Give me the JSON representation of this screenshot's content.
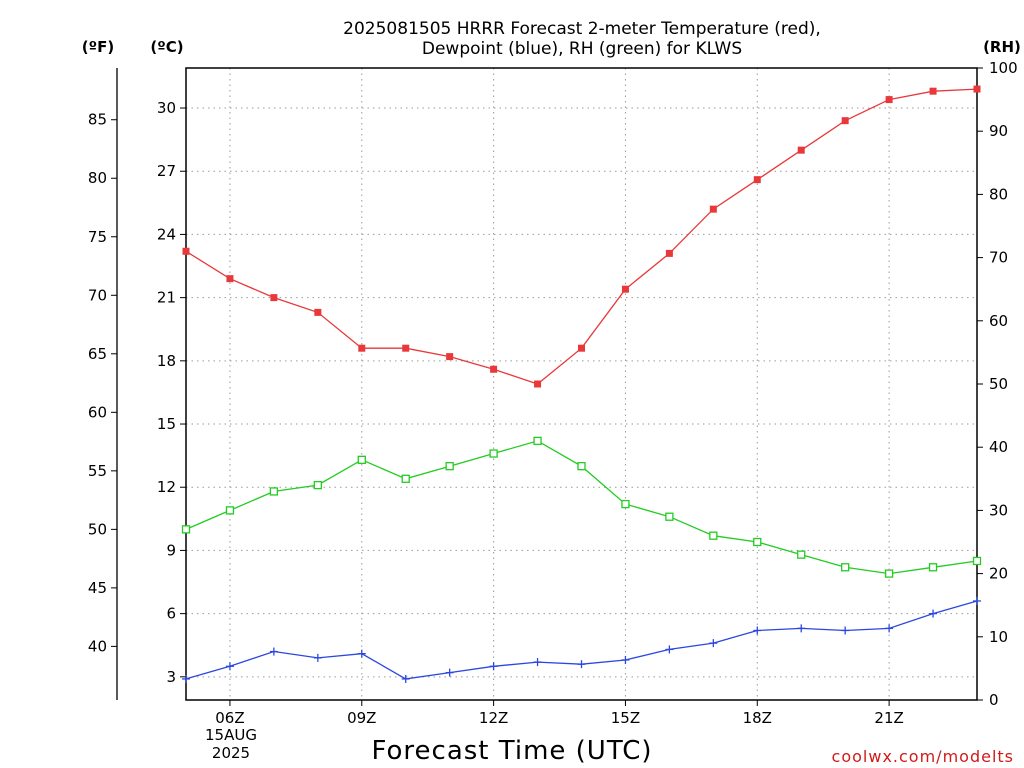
{
  "title_line1": "2025081505 HRRR Forecast 2-meter Temperature (red),",
  "title_line2": "Dewpoint (blue), RH (green) for KLWS",
  "xlabel": "Forecast Time (UTC)",
  "credit": "coolwx.com/modelts",
  "unit_f": "(ºF)",
  "unit_c": "(ºC)",
  "unit_rh": "(RH)",
  "date_line1": "15AUG",
  "date_line2": "2025",
  "chart_data": {
    "type": "line",
    "x_hours": [
      5,
      6,
      7,
      8,
      9,
      10,
      11,
      12,
      13,
      14,
      15,
      16,
      17,
      18,
      19,
      20,
      21,
      22,
      23
    ],
    "xlim": [
      5,
      23
    ],
    "x_ticks": [
      {
        "hour": 6,
        "label": "06Z"
      },
      {
        "hour": 9,
        "label": "09Z"
      },
      {
        "hour": 12,
        "label": "12Z"
      },
      {
        "hour": 15,
        "label": "15Z"
      },
      {
        "hour": 18,
        "label": "18Z"
      },
      {
        "hour": 21,
        "label": "21Z"
      }
    ],
    "y_celsius_ticks": [
      3,
      6,
      9,
      12,
      15,
      18,
      21,
      24,
      27,
      30
    ],
    "y_celsius_lim": [
      1.9,
      31.9
    ],
    "y_fahrenheit_ticks": [
      40,
      45,
      50,
      55,
      60,
      65,
      70,
      75,
      80,
      85
    ],
    "y_rh_ticks": [
      0,
      10,
      20,
      30,
      40,
      50,
      60,
      70,
      80,
      90,
      100
    ],
    "y_rh_lim": [
      0,
      100
    ],
    "grid": true,
    "series": [
      {
        "name": "Temperature",
        "axis": "celsius",
        "color": "#e8383a",
        "marker": "filled-square",
        "values": [
          23.2,
          21.9,
          21.0,
          20.3,
          18.6,
          18.6,
          18.2,
          17.6,
          16.9,
          18.6,
          21.4,
          23.1,
          25.2,
          26.6,
          28.0,
          29.4,
          30.4,
          30.8,
          30.9
        ]
      },
      {
        "name": "Dewpoint",
        "axis": "celsius",
        "color": "#2a47e0",
        "marker": "plus",
        "values": [
          2.9,
          3.5,
          4.2,
          3.9,
          4.1,
          2.9,
          3.2,
          3.5,
          3.7,
          3.6,
          3.8,
          4.3,
          4.6,
          5.2,
          5.3,
          5.2,
          5.3,
          6.0,
          6.6
        ]
      },
      {
        "name": "RH",
        "axis": "rh",
        "color": "#22cc22",
        "marker": "open-square",
        "values": [
          27,
          30,
          33,
          34,
          38,
          35,
          37,
          39,
          41,
          37,
          31,
          29,
          26,
          25,
          23,
          21,
          20,
          21,
          22
        ]
      }
    ]
  }
}
